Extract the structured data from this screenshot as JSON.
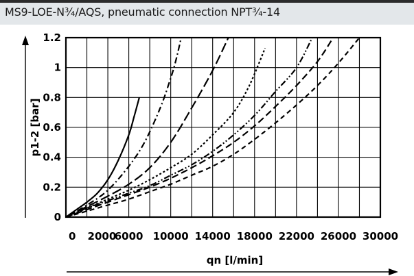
{
  "chart_data": {
    "type": "line",
    "title": "MS9-LOE-N¾/AQS, pneumatic connection NPT¾-14",
    "xlabel": "qn [l/min]",
    "ylabel": "p1-2 [bar]",
    "xlim": [
      0,
      30000
    ],
    "ylim": [
      0,
      1.2
    ],
    "x_ticks": [
      0,
      2000,
      6000,
      10000,
      14000,
      18000,
      22000,
      26000,
      30000
    ],
    "x_tick_labels": [
      "0",
      "2000",
      "6000",
      "10000",
      "14000",
      "18000",
      "22000",
      "26000",
      "30000"
    ],
    "y_ticks": [
      0,
      0.2,
      0.4,
      0.6,
      0.8,
      1,
      1.2
    ],
    "y_tick_labels": [
      "0",
      "0.2",
      "0.4",
      "0.6",
      "0.8",
      "1",
      "1.2"
    ],
    "grid": true,
    "legend": "none",
    "series": [
      {
        "dash": "solid",
        "points": [
          [
            0,
            0
          ],
          [
            1000,
            0.05
          ],
          [
            2000,
            0.1
          ],
          [
            3000,
            0.16
          ],
          [
            4000,
            0.25
          ],
          [
            5000,
            0.38
          ],
          [
            6000,
            0.55
          ],
          [
            6500,
            0.67
          ],
          [
            7000,
            0.8
          ]
        ]
      },
      {
        "dash": "dash-dot",
        "points": [
          [
            0,
            0
          ],
          [
            2000,
            0.08
          ],
          [
            4000,
            0.18
          ],
          [
            6000,
            0.34
          ],
          [
            7500,
            0.5
          ],
          [
            9000,
            0.73
          ],
          [
            10000,
            0.93
          ],
          [
            10500,
            1.05
          ],
          [
            11000,
            1.2
          ]
        ]
      },
      {
        "dash": "long-dash",
        "points": [
          [
            0,
            0
          ],
          [
            2000,
            0.07
          ],
          [
            4000,
            0.14
          ],
          [
            6000,
            0.22
          ],
          [
            8000,
            0.33
          ],
          [
            10000,
            0.5
          ],
          [
            12000,
            0.73
          ],
          [
            14000,
            0.98
          ],
          [
            15500,
            1.2
          ]
        ]
      },
      {
        "dash": "dotted",
        "points": [
          [
            0,
            0
          ],
          [
            2000,
            0.06
          ],
          [
            4000,
            0.12
          ],
          [
            6000,
            0.18
          ],
          [
            8000,
            0.25
          ],
          [
            10000,
            0.33
          ],
          [
            12000,
            0.42
          ],
          [
            14000,
            0.55
          ],
          [
            16000,
            0.7
          ],
          [
            17500,
            0.88
          ],
          [
            19000,
            1.13
          ]
        ]
      },
      {
        "dash": "dash-dot-dot",
        "points": [
          [
            0,
            0
          ],
          [
            2000,
            0.06
          ],
          [
            4000,
            0.11
          ],
          [
            6000,
            0.16
          ],
          [
            8000,
            0.21
          ],
          [
            10000,
            0.28
          ],
          [
            12000,
            0.35
          ],
          [
            14000,
            0.44
          ],
          [
            16000,
            0.55
          ],
          [
            18000,
            0.68
          ],
          [
            20000,
            0.84
          ],
          [
            22000,
            1.0
          ],
          [
            23500,
            1.2
          ]
        ]
      },
      {
        "dash": "medium-dash",
        "points": [
          [
            0,
            0
          ],
          [
            2000,
            0.05
          ],
          [
            4000,
            0.1
          ],
          [
            6000,
            0.15
          ],
          [
            8000,
            0.2
          ],
          [
            10000,
            0.26
          ],
          [
            12000,
            0.33
          ],
          [
            14000,
            0.41
          ],
          [
            16000,
            0.5
          ],
          [
            18000,
            0.61
          ],
          [
            20000,
            0.74
          ],
          [
            22000,
            0.88
          ],
          [
            24000,
            1.04
          ],
          [
            25500,
            1.2
          ]
        ]
      },
      {
        "dash": "short-dash",
        "points": [
          [
            0,
            0
          ],
          [
            2000,
            0.04
          ],
          [
            4000,
            0.08
          ],
          [
            6000,
            0.12
          ],
          [
            8000,
            0.17
          ],
          [
            10000,
            0.22
          ],
          [
            12000,
            0.28
          ],
          [
            14000,
            0.34
          ],
          [
            16000,
            0.42
          ],
          [
            18000,
            0.52
          ],
          [
            20000,
            0.63
          ],
          [
            22000,
            0.75
          ],
          [
            24000,
            0.88
          ],
          [
            26000,
            1.03
          ],
          [
            28000,
            1.2
          ]
        ]
      }
    ]
  }
}
